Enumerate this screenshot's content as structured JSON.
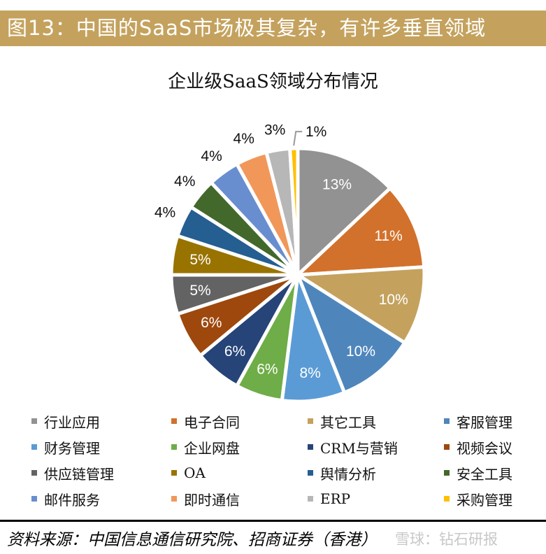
{
  "header": {
    "title": "图13：中国的SaaS市场极其复杂，有许多垂直领域",
    "color": "#C4A25E"
  },
  "chart_data": {
    "type": "pie",
    "title": "企业级SaaS领域分布情况",
    "start": "12 o'clock, clockwise",
    "legend_position": "bottom",
    "categories": [
      "行业应用",
      "电子合同",
      "其它工具",
      "客服管理",
      "财务管理",
      "企业网盘",
      "CRM与营销",
      "视频会议",
      "供应链管理",
      "OA",
      "舆情分析",
      "安全工具",
      "邮件服务",
      "即时通信",
      "ERP",
      "采购管理"
    ],
    "values": [
      13,
      11,
      10,
      10,
      8,
      6,
      6,
      6,
      5,
      5,
      4,
      4,
      4,
      4,
      3,
      1
    ],
    "data_labels": [
      "13%",
      "11%",
      "10%",
      "10%",
      "8%",
      "6%",
      "6%",
      "6%",
      "5%",
      "5%",
      "4%",
      "4%",
      "4%",
      "4%",
      "3%",
      "1%"
    ],
    "colors": [
      "#929292",
      "#D2712B",
      "#C4A25E",
      "#4E86BC",
      "#5B9BD5",
      "#6EAD47",
      "#264478",
      "#9E480E",
      "#636363",
      "#997300",
      "#255E91",
      "#43682B",
      "#698ED0",
      "#F1975A",
      "#B7B7B7",
      "#FFC000"
    ]
  },
  "footer": {
    "source": "资料来源：中国信息通信研究院、招商证券（香港）",
    "watermark": "雪球：钻石研报"
  }
}
